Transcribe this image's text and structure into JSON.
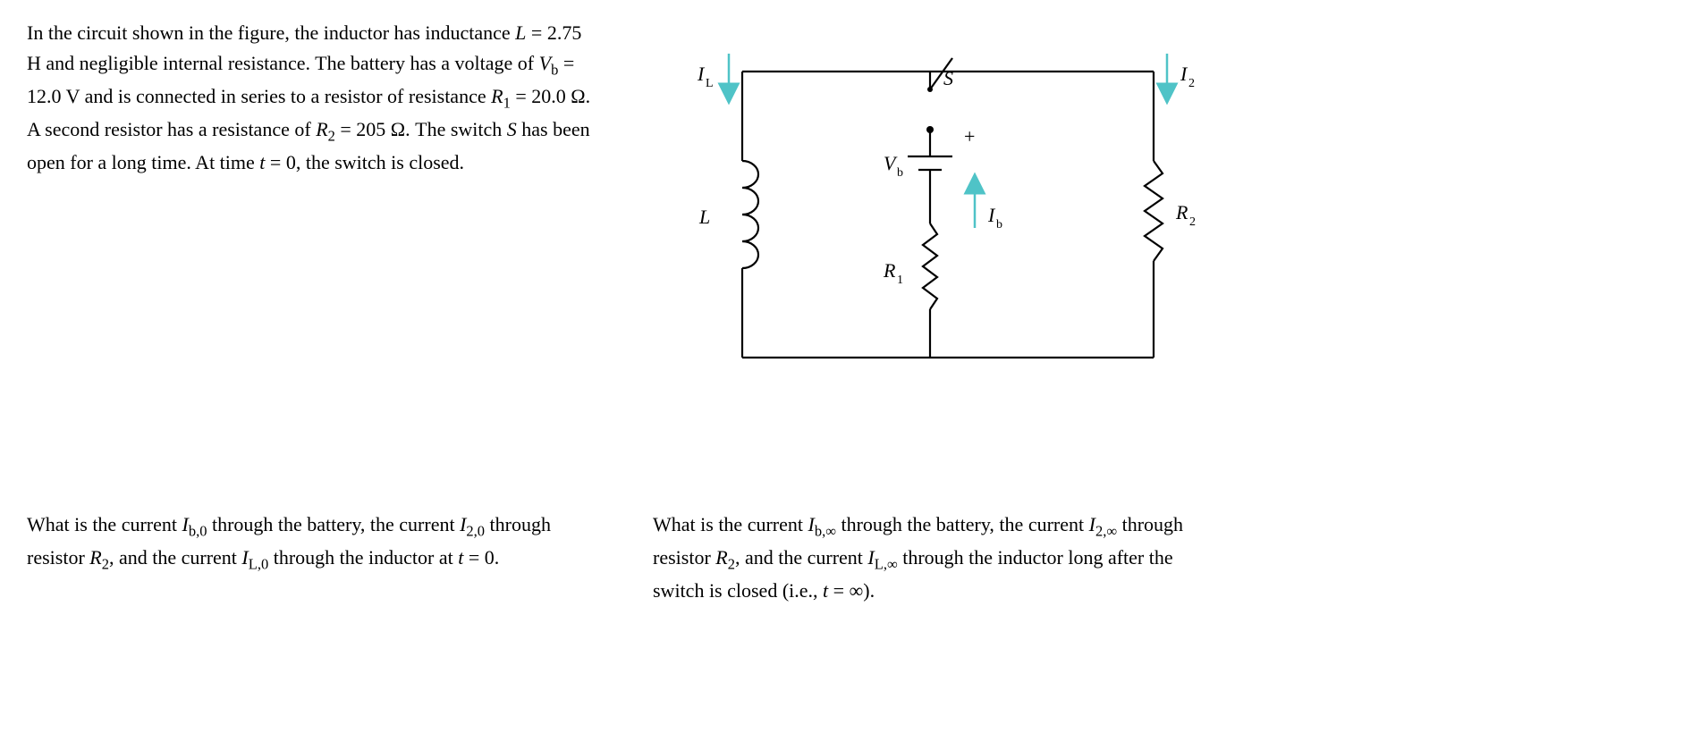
{
  "problem": {
    "text_html": "In the circuit shown in the figure, the inductor has inductance <span class=\"ital\">L</span> = 2.75 H and negligible internal resistance. The battery has a voltage of <span class=\"ital\">V</span><sub>b</sub> = 12.0 V and is connected in series to a resistor of resistance <span class=\"ital\">R</span><sub>1</sub> = 20.0 Ω. A second resistor has a resistance of <span class=\"ital\">R</span><sub>2</sub> = 205 Ω. The switch <span class=\"ital\">S</span> has been open for a long time. At time <span class=\"ital\">t</span> = 0, the switch is closed."
  },
  "question_left": {
    "text_html": "What is the current <span class=\"ital\">I</span><sub>b,0</sub> through the battery, the current <span class=\"ital\">I</span><sub>2,0</sub> through resistor <span class=\"ital\">R</span><sub>2</sub>, and the current <span class=\"ital\">I</span><sub>L,0</sub> through the inductor at <span class=\"ital\">t</span> = 0."
  },
  "question_right": {
    "text_html": "What is the current <span class=\"ital\">I</span><sub>b,∞</sub> through the battery, the current <span class=\"ital\">I</span><sub>2,∞</sub> through resistor <span class=\"ital\">R</span><sub>2</sub>, and the current <span class=\"ital\">I</span><sub>L,∞</sub> through the inductor long after the switch is closed (i.e., <span class=\"ital\">t</span> = ∞)."
  },
  "circuit": {
    "labels": {
      "IL": "I",
      "IL_sub": "L",
      "I2": "I",
      "I2_sub": "2",
      "Ib": "I",
      "Ib_sub": "b",
      "S": "S",
      "Vb": "V",
      "Vb_sub": "b",
      "plus": "+",
      "L": "L",
      "R1": "R",
      "R1_sub": "1",
      "R2": "R",
      "R2_sub": "2"
    },
    "colors": {
      "wire": "#000000",
      "arrow": "#4fc3c7",
      "text": "#000000"
    },
    "stroke_width": 2.2
  }
}
